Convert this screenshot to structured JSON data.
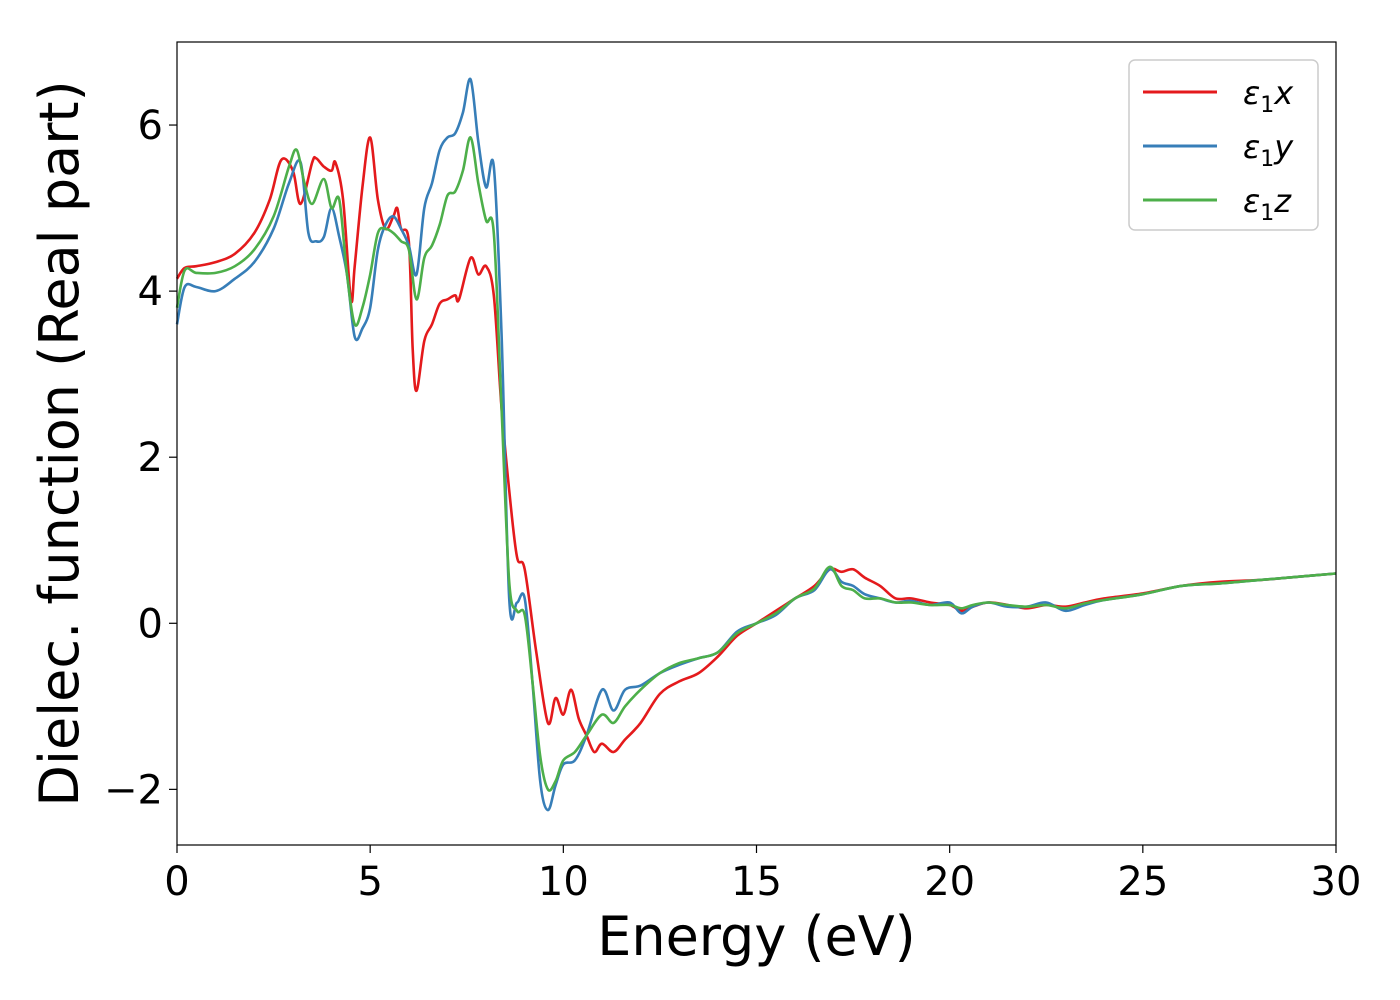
{
  "chart_data": {
    "type": "line",
    "xlabel": "Energy (eV)",
    "ylabel": "Dielec. function (Real part)",
    "xlim": [
      0,
      30
    ],
    "ylim": [
      -2.67,
      7.0
    ],
    "xticks": [
      0,
      5,
      10,
      15,
      20,
      25,
      30
    ],
    "yticks": [
      -2,
      0,
      2,
      4,
      6
    ],
    "xtick_labels": [
      "0",
      "5",
      "10",
      "15",
      "20",
      "25",
      "30"
    ],
    "ytick_labels": [
      "−2",
      "0",
      "2",
      "4",
      "6"
    ],
    "grid": false,
    "legend_position": "top-right",
    "series": [
      {
        "name": "ε1x",
        "legend_base": "ε",
        "legend_sub": "1",
        "legend_var": "x",
        "color": "#e41a1c",
        "x": [
          0,
          0.2,
          0.5,
          1.0,
          1.5,
          2.0,
          2.4,
          2.7,
          3.0,
          3.2,
          3.5,
          3.6,
          3.8,
          4.0,
          4.1,
          4.3,
          4.5,
          4.6,
          4.8,
          5.0,
          5.2,
          5.4,
          5.6,
          5.7,
          5.8,
          6.0,
          6.1,
          6.2,
          6.4,
          6.6,
          6.8,
          7.0,
          7.2,
          7.3,
          7.6,
          7.8,
          8.0,
          8.2,
          8.4,
          8.6,
          8.8,
          9.0,
          9.3,
          9.6,
          9.8,
          10.0,
          10.2,
          10.4,
          10.6,
          10.8,
          11.0,
          11.3,
          11.6,
          12.0,
          12.5,
          13.0,
          13.5,
          14.0,
          14.5,
          15.0,
          15.5,
          16.0,
          16.5,
          16.9,
          17.2,
          17.5,
          17.8,
          18.2,
          18.6,
          19.0,
          19.5,
          20.0,
          20.3,
          20.6,
          21.0,
          21.5,
          22.0,
          22.5,
          23.0,
          23.5,
          24.0,
          25.0,
          26.0,
          27.0,
          28.0,
          29.0,
          30.0
        ],
        "y": [
          4.15,
          4.28,
          4.3,
          4.35,
          4.45,
          4.7,
          5.1,
          5.58,
          5.45,
          5.05,
          5.55,
          5.6,
          5.5,
          5.45,
          5.55,
          5.1,
          3.9,
          4.3,
          5.25,
          5.85,
          5.1,
          4.75,
          4.9,
          5.0,
          4.75,
          4.6,
          3.3,
          2.8,
          3.4,
          3.6,
          3.85,
          3.9,
          3.95,
          3.9,
          4.4,
          4.2,
          4.3,
          3.95,
          2.6,
          1.6,
          0.8,
          0.65,
          -0.35,
          -1.2,
          -0.9,
          -1.1,
          -0.8,
          -1.15,
          -1.35,
          -1.55,
          -1.45,
          -1.55,
          -1.4,
          -1.2,
          -0.85,
          -0.7,
          -0.6,
          -0.4,
          -0.15,
          0.0,
          0.15,
          0.3,
          0.45,
          0.65,
          0.62,
          0.65,
          0.55,
          0.45,
          0.3,
          0.3,
          0.25,
          0.22,
          0.15,
          0.2,
          0.25,
          0.22,
          0.18,
          0.22,
          0.2,
          0.25,
          0.3,
          0.36,
          0.45,
          0.5,
          0.52,
          0.56,
          0.6
        ]
      },
      {
        "name": "ε1y",
        "legend_base": "ε",
        "legend_sub": "1",
        "legend_var": "y",
        "color": "#377eb8",
        "x": [
          0,
          0.2,
          0.5,
          1.0,
          1.5,
          2.0,
          2.5,
          2.9,
          3.2,
          3.4,
          3.6,
          3.8,
          4.0,
          4.2,
          4.4,
          4.6,
          4.8,
          5.0,
          5.2,
          5.4,
          5.6,
          5.8,
          6.0,
          6.2,
          6.4,
          6.6,
          6.8,
          7.0,
          7.2,
          7.4,
          7.6,
          7.8,
          8.0,
          8.2,
          8.4,
          8.6,
          8.8,
          9.0,
          9.2,
          9.4,
          9.6,
          9.8,
          10.0,
          10.3,
          10.6,
          11.0,
          11.3,
          11.6,
          12.0,
          12.5,
          13.0,
          13.5,
          14.0,
          14.5,
          15.0,
          15.5,
          16.0,
          16.5,
          16.9,
          17.2,
          17.5,
          17.8,
          18.2,
          18.6,
          19.0,
          19.5,
          20.0,
          20.3,
          20.6,
          21.0,
          21.5,
          22.0,
          22.5,
          23.0,
          23.5,
          24.0,
          25.0,
          26.0,
          27.0,
          28.0,
          29.0,
          30.0
        ],
        "y": [
          3.6,
          4.05,
          4.05,
          4.0,
          4.15,
          4.35,
          4.75,
          5.3,
          5.55,
          4.7,
          4.6,
          4.65,
          5.0,
          4.65,
          4.2,
          3.45,
          3.55,
          3.8,
          4.5,
          4.8,
          4.9,
          4.75,
          4.55,
          4.2,
          5.0,
          5.3,
          5.7,
          5.85,
          5.9,
          6.15,
          6.55,
          5.8,
          5.25,
          5.5,
          3.5,
          0.3,
          0.25,
          0.3,
          -0.7,
          -1.9,
          -2.25,
          -1.95,
          -1.7,
          -1.65,
          -1.35,
          -0.8,
          -1.05,
          -0.8,
          -0.75,
          -0.6,
          -0.5,
          -0.42,
          -0.35,
          -0.1,
          0.0,
          0.1,
          0.3,
          0.4,
          0.65,
          0.5,
          0.45,
          0.35,
          0.3,
          0.25,
          0.27,
          0.22,
          0.25,
          0.12,
          0.2,
          0.25,
          0.2,
          0.2,
          0.25,
          0.15,
          0.22,
          0.28,
          0.35,
          0.45,
          0.48,
          0.52,
          0.56,
          0.6
        ]
      },
      {
        "name": "ε1z",
        "legend_base": "ε",
        "legend_sub": "1",
        "legend_var": "z",
        "color": "#4daf4a",
        "x": [
          0,
          0.2,
          0.5,
          1.0,
          1.5,
          2.0,
          2.5,
          2.9,
          3.1,
          3.3,
          3.5,
          3.8,
          4.0,
          4.2,
          4.4,
          4.6,
          4.8,
          5.0,
          5.2,
          5.4,
          5.6,
          5.8,
          6.0,
          6.2,
          6.4,
          6.6,
          6.8,
          7.0,
          7.2,
          7.4,
          7.6,
          7.8,
          8.0,
          8.2,
          8.4,
          8.6,
          8.8,
          9.0,
          9.2,
          9.4,
          9.6,
          9.8,
          10.0,
          10.3,
          10.6,
          11.0,
          11.3,
          11.6,
          12.0,
          12.5,
          13.0,
          13.5,
          14.0,
          14.5,
          15.0,
          15.5,
          16.0,
          16.5,
          16.9,
          17.2,
          17.5,
          17.8,
          18.2,
          18.6,
          19.0,
          19.5,
          20.0,
          20.3,
          20.6,
          21.0,
          21.5,
          22.0,
          22.5,
          23.0,
          23.5,
          24.0,
          25.0,
          26.0,
          27.0,
          28.0,
          29.0,
          30.0
        ],
        "y": [
          3.8,
          4.25,
          4.22,
          4.22,
          4.3,
          4.5,
          4.9,
          5.5,
          5.7,
          5.3,
          5.05,
          5.35,
          5.0,
          5.1,
          4.2,
          3.6,
          3.8,
          4.2,
          4.7,
          4.75,
          4.7,
          4.6,
          4.5,
          3.9,
          4.4,
          4.55,
          4.8,
          5.15,
          5.2,
          5.45,
          5.85,
          5.3,
          4.85,
          4.7,
          2.6,
          0.5,
          0.15,
          0.1,
          -0.7,
          -1.6,
          -2.0,
          -1.9,
          -1.65,
          -1.55,
          -1.35,
          -1.1,
          -1.2,
          -1.0,
          -0.8,
          -0.6,
          -0.48,
          -0.42,
          -0.35,
          -0.12,
          0.0,
          0.12,
          0.3,
          0.42,
          0.68,
          0.45,
          0.4,
          0.3,
          0.3,
          0.25,
          0.25,
          0.22,
          0.22,
          0.18,
          0.22,
          0.25,
          0.22,
          0.2,
          0.22,
          0.18,
          0.24,
          0.28,
          0.35,
          0.45,
          0.48,
          0.52,
          0.56,
          0.6
        ]
      }
    ]
  }
}
